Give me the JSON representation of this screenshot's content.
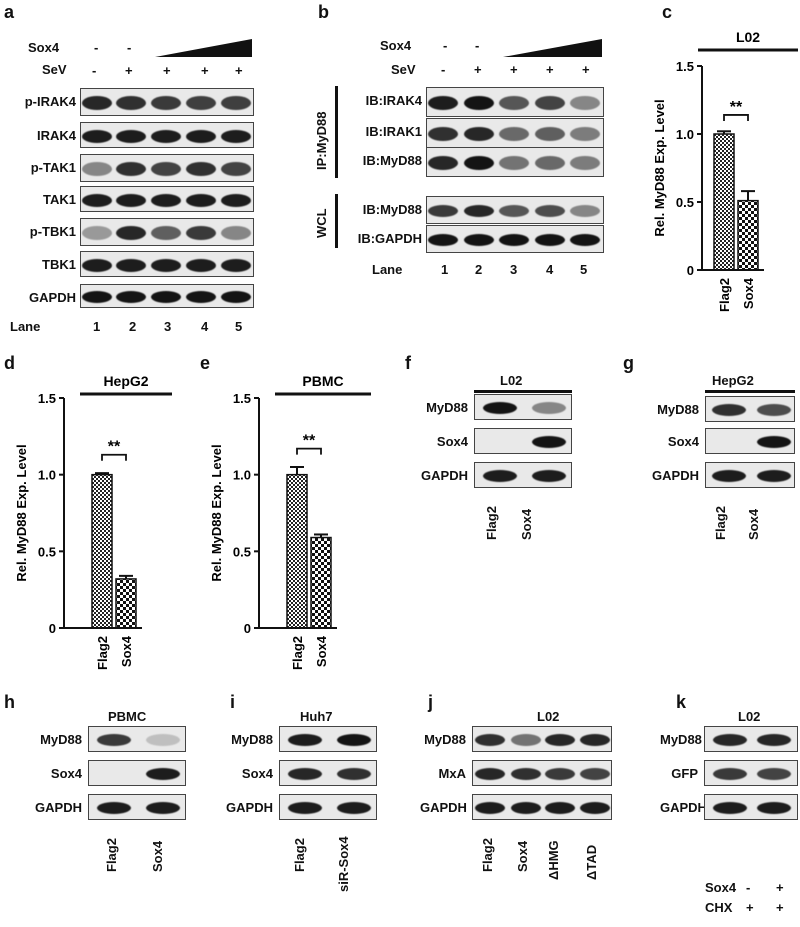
{
  "panels": {
    "a": {
      "label": "a",
      "rows": [
        "Sox4",
        "SeV"
      ],
      "sox4_signs": [
        "-",
        "-"
      ],
      "sev_signs": [
        "-",
        "+",
        "+",
        "+",
        "+"
      ],
      "blots": [
        "p-IRAK4",
        "IRAK4",
        "p-TAK1",
        "TAK1",
        "p-TBK1",
        "TBK1",
        "GAPDH"
      ],
      "lane_label": "Lane",
      "lanes": [
        "1",
        "2",
        "3",
        "4",
        "5"
      ]
    },
    "b": {
      "label": "b",
      "rows": [
        "Sox4",
        "SeV"
      ],
      "sox4_signs": [
        "-",
        "-"
      ],
      "sev_signs": [
        "-",
        "+",
        "+",
        "+",
        "+"
      ],
      "ip_label": "IP:MyD88",
      "ip_blots": [
        "IB:IRAK4",
        "IB:IRAK1",
        "IB:MyD88"
      ],
      "wcl_label": "WCL",
      "wcl_blots": [
        "IB:MyD88",
        "IB:GAPDH"
      ],
      "lane_label": "Lane",
      "lanes": [
        "1",
        "2",
        "3",
        "4",
        "5"
      ]
    },
    "c": {
      "label": "c",
      "cell": "L02"
    },
    "d": {
      "label": "d",
      "cell": "HepG2"
    },
    "e": {
      "label": "e",
      "cell": "PBMC"
    },
    "f": {
      "label": "f",
      "cell": "L02",
      "blots": [
        "MyD88",
        "Sox4",
        "GAPDH"
      ],
      "lanes": [
        "Flag2",
        "Sox4"
      ]
    },
    "g": {
      "label": "g",
      "cell": "HepG2",
      "blots": [
        "MyD88",
        "Sox4",
        "GAPDH"
      ],
      "lanes": [
        "Flag2",
        "Sox4"
      ]
    },
    "h": {
      "label": "h",
      "cell": "PBMC",
      "blots": [
        "MyD88",
        "Sox4",
        "GAPDH"
      ],
      "lanes": [
        "Flag2",
        "Sox4"
      ]
    },
    "i": {
      "label": "i",
      "cell": "Huh7",
      "blots": [
        "MyD88",
        "Sox4",
        "GAPDH"
      ],
      "lanes": [
        "Flag2",
        "siR-Sox4"
      ]
    },
    "j": {
      "label": "j",
      "cell": "L02",
      "blots": [
        "MyD88",
        "MxA",
        "GAPDH"
      ],
      "lanes": [
        "Flag2",
        "Sox4",
        "ΔHMG",
        "ΔTAD"
      ]
    },
    "k": {
      "label": "k",
      "cell": "L02",
      "blots": [
        "MyD88",
        "GFP",
        "GAPDH"
      ],
      "treat_rows": [
        "Sox4",
        "CHX"
      ],
      "sox4_signs": [
        "-",
        "+"
      ],
      "chx_signs": [
        "+",
        "+"
      ]
    }
  },
  "chart_data": [
    {
      "panel": "c",
      "type": "bar",
      "title": "L02",
      "categories": [
        "Flag2",
        "Sox4"
      ],
      "values": [
        1.0,
        0.51
      ],
      "errors": [
        0.02,
        0.07
      ],
      "ylabel": "Rel. MyD88 Exp. Level",
      "ylim": [
        0,
        1.5
      ],
      "yticks": [
        "0",
        "0.5",
        "1.0",
        "1.5"
      ],
      "significance": "**"
    },
    {
      "panel": "d",
      "type": "bar",
      "title": "HepG2",
      "categories": [
        "Flag2",
        "Sox4"
      ],
      "values": [
        1.0,
        0.32
      ],
      "errors": [
        0.01,
        0.02
      ],
      "ylabel": "Rel. MyD88 Exp. Level",
      "ylim": [
        0,
        1.5
      ],
      "yticks": [
        "0",
        "0.5",
        "1.0",
        "1.5"
      ],
      "significance": "**"
    },
    {
      "panel": "e",
      "type": "bar",
      "title": "PBMC",
      "categories": [
        "Flag2",
        "Sox4"
      ],
      "values": [
        1.0,
        0.59
      ],
      "errors": [
        0.05,
        0.02
      ],
      "ylabel": "Rel. MyD88 Exp. Level",
      "ylim": [
        0,
        1.5
      ],
      "yticks": [
        "0",
        "0.5",
        "1.0",
        "1.5"
      ],
      "significance": "**"
    }
  ]
}
